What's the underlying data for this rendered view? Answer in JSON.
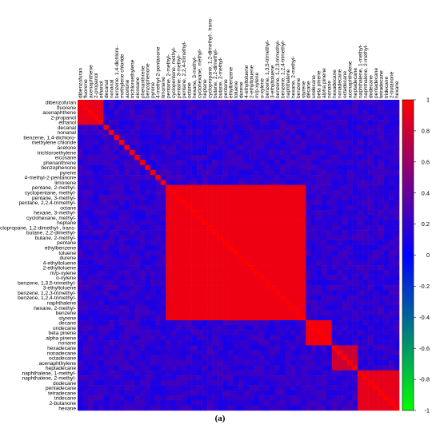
{
  "panel_label": "(a)",
  "chart_data": {
    "type": "heatmap",
    "title": "",
    "xlabel": "",
    "ylabel": "",
    "variables": [
      "dibenzofuran",
      "fluorene",
      "acenaphthene",
      "2-propanol",
      "ethanol",
      "decanal",
      "nonanal",
      "benzene, 1,4-dichloro-",
      "methylene chloride",
      "acetone",
      "trichloroethylene",
      "eicosane",
      "phenanthrene",
      "benzophenone",
      "pyrene",
      "4-methyl-2-pentanone",
      "limonene",
      "pentane, 2-methyl-",
      "cyclopentane, methyl-",
      "pentane, 3-methyl-",
      "pentane, 2,2,4-trimethyl-",
      "octane",
      "hexane, 3-methyl-",
      "cyclohexane, methyl-",
      "heptane",
      "cyclopropane, 1,2-dimethyl-, trans-",
      "butane, 2,2-dimethyl-",
      "butane, 2-methyl-",
      "pentane",
      "ethylbenzene",
      "toluene",
      "durene",
      "4-ethyltoluene",
      "2-ethyltoluene",
      "m/p-xylene",
      "o-xylene",
      "benzene, 1,3,5-trimethyl-",
      "3-ethyltoluene",
      "benzene, 1,2,3-trimethyl-",
      "benzene, 1,2,4-trimethyl-",
      "naphthalene",
      "hexane, 2-methyl-",
      "benzene",
      "styrene",
      "decane",
      "undecane",
      "beta pinene",
      "alpha pinene",
      "nonane",
      "hexadecane",
      "nonadecane",
      "octadecane",
      "acenaphthylene",
      "heptadecane",
      "naphthalene, 1-methyl-",
      "naphthalene, 2-methyl-",
      "dodecane",
      "pentadecane",
      "tetradecane",
      "tridecane",
      "2-butanone",
      "hexane"
    ],
    "groups": [
      {
        "members": [
          0,
          1,
          2,
          3,
          4
        ],
        "value": 0.9
      },
      {
        "members": [
          17,
          18,
          19,
          20,
          21,
          22,
          23,
          24,
          25,
          26,
          27,
          28,
          29,
          30,
          31,
          32,
          33,
          34,
          35,
          36,
          37,
          38,
          39,
          40,
          41,
          42,
          43
        ],
        "value": 0.93
      },
      {
        "members": [
          44,
          45,
          46,
          47,
          48
        ],
        "value": 0.95
      },
      {
        "members": [
          49,
          50,
          51,
          52,
          53
        ],
        "value": 0.8
      },
      {
        "members": [
          54,
          55,
          56,
          57,
          58,
          59,
          60,
          61
        ],
        "value": 0.9
      }
    ],
    "value_range": [
      -1,
      1
    ],
    "colorbar": {
      "ticks": [
        1,
        0.8,
        0.6,
        0.4,
        0.2,
        0,
        -0.2,
        -0.4,
        -0.6,
        -0.8,
        -1
      ],
      "stops": [
        "#ff0000",
        "#0000ff",
        "#00ff00"
      ]
    },
    "grid": false,
    "legend_position": "right"
  }
}
